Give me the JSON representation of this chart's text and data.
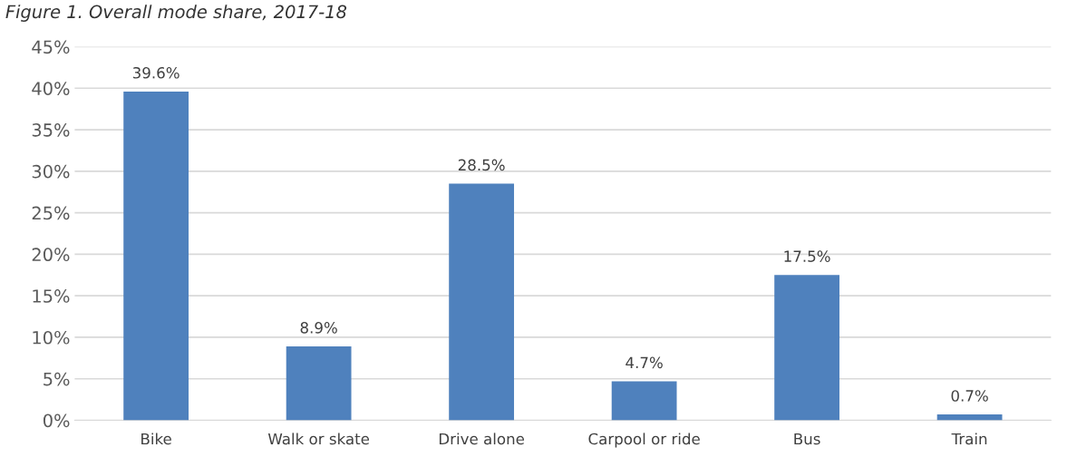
{
  "chart_data": {
    "type": "bar",
    "title": "Figure 1. Overall mode share, 2017-18",
    "categories": [
      "Bike",
      "Walk or skate",
      "Drive alone",
      "Carpool or ride",
      "Bus",
      "Train"
    ],
    "values": [
      39.6,
      8.9,
      28.5,
      4.7,
      17.5,
      0.7
    ],
    "color": "#4f81bd",
    "value_labels": [
      "39.6%",
      "8.9%",
      "28.5%",
      "4.7%",
      "17.5%",
      "0.7%"
    ],
    "ylim": [
      0,
      45
    ],
    "yticks": [
      {
        "value": 0,
        "label": "0%"
      },
      {
        "value": 5,
        "label": "5%"
      },
      {
        "value": 10,
        "label": "10%"
      },
      {
        "value": 15,
        "label": "15%"
      },
      {
        "value": 20,
        "label": "20%"
      },
      {
        "value": 25,
        "label": "25%"
      },
      {
        "value": 30,
        "label": "30%"
      },
      {
        "value": 35,
        "label": "35%"
      },
      {
        "value": 40,
        "label": "40%"
      },
      {
        "value": 45,
        "label": "45%"
      }
    ],
    "grid": "y",
    "legend": false
  }
}
